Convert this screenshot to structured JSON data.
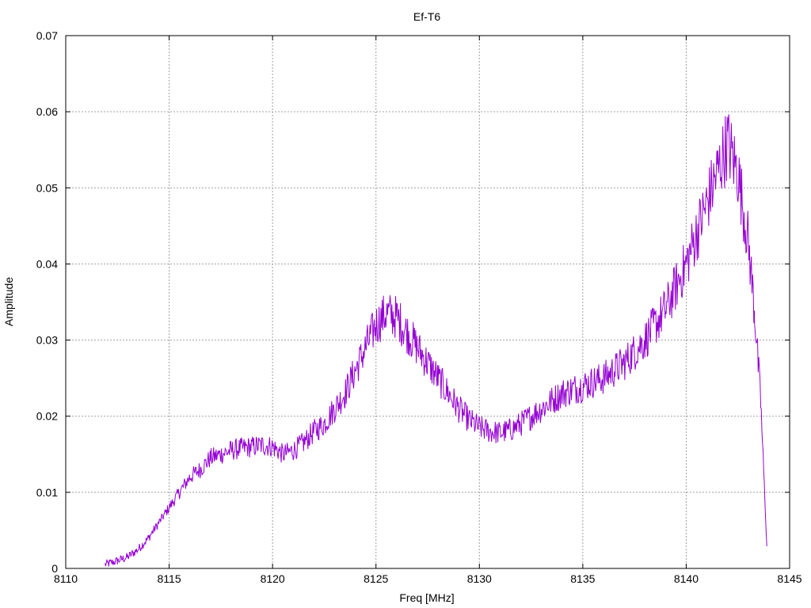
{
  "chart_data": {
    "type": "line",
    "title": "Ef-T6",
    "xlabel": "Freq [MHz]",
    "ylabel": "Amplitude",
    "xlim": [
      8110,
      8145
    ],
    "ylim": [
      0,
      0.07
    ],
    "xticks": [
      8110,
      8115,
      8120,
      8125,
      8130,
      8135,
      8140,
      8145
    ],
    "yticks": [
      0,
      0.01,
      0.02,
      0.03,
      0.04,
      0.05,
      0.06,
      0.07
    ],
    "xtick_labels": [
      "8110",
      "8115",
      "8120",
      "8125",
      "8130",
      "8135",
      "8140",
      "8145"
    ],
    "ytick_labels": [
      "0",
      "0.01",
      "0.02",
      "0.03",
      "0.04",
      "0.05",
      "0.06",
      "0.07"
    ],
    "grid": true,
    "legend": "none",
    "series": [
      {
        "color": "#9400d3",
        "x": [
          8111.9,
          8112.5,
          8113.0,
          8113.5,
          8114.0,
          8114.5,
          8115.0,
          8115.5,
          8116.0,
          8116.5,
          8117.0,
          8117.5,
          8118.0,
          8118.5,
          8119.0,
          8119.5,
          8120.0,
          8120.5,
          8121.0,
          8121.5,
          8122.0,
          8122.5,
          8123.0,
          8123.5,
          8124.0,
          8124.5,
          8125.0,
          8125.5,
          8126.0,
          8126.5,
          8127.0,
          8127.5,
          8128.0,
          8128.5,
          8129.0,
          8129.5,
          8130.0,
          8130.5,
          8131.0,
          8131.5,
          8132.0,
          8132.5,
          8133.0,
          8133.5,
          8134.0,
          8134.5,
          8135.0,
          8135.5,
          8136.0,
          8136.5,
          8137.0,
          8137.5,
          8138.0,
          8138.5,
          8139.0,
          8139.5,
          8140.0,
          8140.5,
          8141.0,
          8141.5,
          8142.0,
          8142.5,
          8143.0,
          8143.3,
          8143.6,
          8143.9
        ],
        "y": [
          0.0005,
          0.001,
          0.0015,
          0.0025,
          0.004,
          0.006,
          0.008,
          0.01,
          0.012,
          0.013,
          0.0145,
          0.015,
          0.0155,
          0.0158,
          0.016,
          0.0162,
          0.016,
          0.015,
          0.0155,
          0.0165,
          0.018,
          0.019,
          0.021,
          0.023,
          0.026,
          0.029,
          0.032,
          0.0335,
          0.033,
          0.031,
          0.029,
          0.027,
          0.025,
          0.023,
          0.021,
          0.0195,
          0.0185,
          0.018,
          0.0178,
          0.0182,
          0.019,
          0.02,
          0.021,
          0.022,
          0.023,
          0.0235,
          0.024,
          0.0245,
          0.025,
          0.026,
          0.027,
          0.0285,
          0.03,
          0.032,
          0.034,
          0.037,
          0.04,
          0.044,
          0.048,
          0.052,
          0.056,
          0.052,
          0.043,
          0.034,
          0.022,
          0.003
        ]
      }
    ]
  }
}
